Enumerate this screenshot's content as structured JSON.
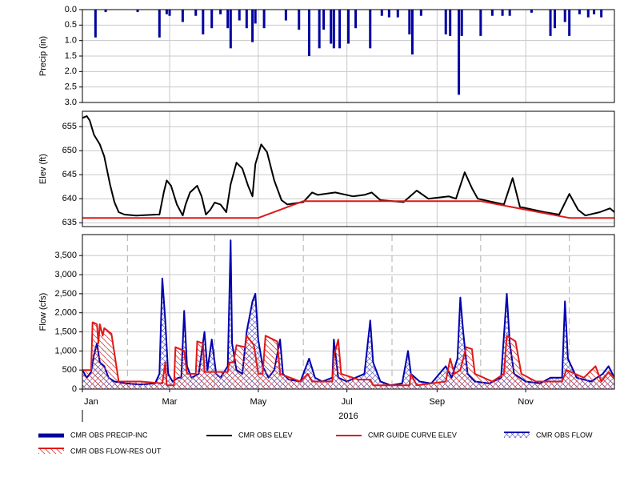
{
  "chart_data": [
    {
      "type": "bar",
      "ylabel": "Precip (in)",
      "xlim": [
        0,
        366
      ],
      "ylim": [
        3,
        0
      ],
      "yticks": [
        {
          "value": 0,
          "label": "0.0"
        },
        0.5,
        {
          "value": 1,
          "label": "1.0"
        },
        1.5,
        {
          "value": 2,
          "label": "2.0"
        },
        2.5,
        {
          "value": 3,
          "label": "3.0"
        }
      ],
      "grid": true,
      "series": [
        {
          "name": "CMR OBS PRECIP-INC",
          "color": "#0000a0",
          "x": [
            9,
            16,
            38,
            53,
            58,
            60,
            69,
            78,
            83,
            89,
            95,
            100,
            102,
            108,
            113,
            117,
            119,
            125,
            140,
            149,
            156,
            163,
            166,
            171,
            173,
            177,
            183,
            188,
            198,
            206,
            211,
            217,
            225,
            227,
            233,
            250,
            253,
            259,
            261,
            274,
            282,
            289,
            294,
            309,
            322,
            325,
            332,
            335,
            342,
            348,
            352,
            357
          ],
          "values": [
            0.9,
            0.08,
            0.08,
            0.9,
            0.15,
            0.2,
            0.4,
            0.2,
            0.8,
            0.6,
            0.15,
            0.6,
            1.25,
            0.35,
            0.6,
            1.05,
            0.45,
            0.6,
            0.35,
            0.65,
            1.5,
            1.25,
            0.65,
            1.1,
            1.25,
            1.25,
            1.1,
            0.6,
            1.25,
            0.2,
            0.25,
            0.25,
            0.8,
            1.45,
            0.2,
            0.8,
            0.85,
            2.75,
            0.85,
            0.85,
            0.2,
            0.2,
            0.2,
            0.1,
            0.85,
            0.6,
            0.4,
            0.85,
            0.15,
            0.25,
            0.15,
            0.25
          ]
        }
      ]
    },
    {
      "type": "line",
      "ylabel": "Elev (ft)",
      "xlim": [
        0,
        366
      ],
      "ylim": [
        634.2,
        658.2
      ],
      "yticks": [
        655,
        650,
        645,
        640,
        635
      ],
      "grid": true,
      "series": [
        {
          "name": "CMR OBS ELEV",
          "color": "#000000",
          "x": [
            0,
            3,
            5,
            8,
            12,
            15,
            19,
            22,
            25,
            29,
            37,
            51,
            53,
            56,
            58,
            61,
            65,
            69,
            71,
            74,
            79,
            82,
            85,
            88,
            91,
            95,
            99,
            102,
            106,
            110,
            114,
            117,
            119,
            123,
            127,
            132,
            137,
            141,
            152,
            158,
            162,
            174,
            186,
            194,
            199,
            205,
            221,
            230,
            238,
            252,
            257,
            263,
            268,
            272,
            290,
            296,
            301,
            318,
            328,
            335,
            341,
            346,
            356,
            363,
            366
          ],
          "values": [
            656.8,
            657.2,
            656.3,
            653.3,
            651.3,
            648.8,
            643,
            639.3,
            637.2,
            636.7,
            636.5,
            636.7,
            636.7,
            641.3,
            643.8,
            642.7,
            638.8,
            636.5,
            638.8,
            641.3,
            642.7,
            640.5,
            636.7,
            637.7,
            639.2,
            638.8,
            637.2,
            643,
            647.5,
            646.3,
            642.7,
            640.5,
            647.2,
            651.3,
            649.7,
            643.8,
            639.7,
            638.8,
            639.3,
            641.3,
            640.8,
            641.3,
            640.5,
            640.8,
            641.3,
            639.7,
            639.3,
            641.7,
            640,
            640.5,
            640,
            645.5,
            642.2,
            640,
            638.8,
            644.3,
            638.3,
            637.2,
            636.7,
            641,
            637.7,
            636.5,
            637.2,
            638,
            637.2
          ]
        },
        {
          "name": "CMR GUIDE CURVE ELEV",
          "color": "#e01818",
          "x": [
            0,
            121,
            152,
            274,
            335,
            366
          ],
          "values": [
            636,
            636,
            639.5,
            639.5,
            636,
            636
          ]
        }
      ]
    },
    {
      "type": "area",
      "ylabel": "Flow (cfs)",
      "xlabel": "2016",
      "xlim": [
        0,
        366
      ],
      "ylim": [
        0,
        4050
      ],
      "yticks": [
        0,
        500,
        {
          "value": 1000,
          "label": "1,000"
        },
        {
          "value": 1500,
          "label": "1,500"
        },
        {
          "value": 2000,
          "label": "2,000"
        },
        {
          "value": 2500,
          "label": "2,500"
        },
        {
          "value": 3000,
          "label": "3,000"
        },
        {
          "value": 3500,
          "label": "3,500"
        }
      ],
      "xticks": [
        {
          "value": 0,
          "label": "Jan"
        },
        {
          "value": 60,
          "label": "Mar"
        },
        {
          "value": 121,
          "label": "May"
        },
        {
          "value": 182,
          "label": "Jul"
        },
        {
          "value": 244,
          "label": "Sep"
        },
        {
          "value": 305,
          "label": "Nov"
        }
      ],
      "xminor": [
        31,
        91,
        152,
        213,
        274,
        335
      ],
      "grid": true,
      "series": [
        {
          "name": "CMR OBS FLOW",
          "color": "#0000b0",
          "x": [
            0,
            3,
            6,
            8,
            10,
            12,
            15,
            18,
            22,
            30,
            40,
            50,
            53,
            55,
            57,
            59,
            62,
            66,
            68,
            70,
            72,
            75,
            80,
            84,
            86,
            89,
            92,
            95,
            100,
            102,
            103,
            106,
            110,
            113,
            117,
            119,
            121,
            124,
            128,
            132,
            136,
            138,
            142,
            150,
            156,
            160,
            165,
            172,
            173,
            176,
            182,
            188,
            194,
            198,
            200,
            205,
            212,
            220,
            224,
            226,
            232,
            240,
            250,
            254,
            258,
            260,
            262,
            265,
            270,
            280,
            288,
            292,
            294,
            297,
            305,
            315,
            322,
            330,
            332,
            334,
            340,
            350,
            358,
            362,
            366
          ],
          "values": [
            500,
            300,
            450,
            900,
            1200,
            700,
            600,
            300,
            200,
            150,
            120,
            150,
            400,
            2900,
            1800,
            400,
            200,
            300,
            300,
            2050,
            600,
            300,
            400,
            1500,
            500,
            1300,
            400,
            300,
            600,
            3900,
            1200,
            500,
            400,
            1500,
            2300,
            2500,
            1300,
            600,
            300,
            500,
            1300,
            400,
            250,
            200,
            800,
            300,
            200,
            300,
            1300,
            300,
            200,
            300,
            400,
            1800,
            700,
            200,
            100,
            150,
            1000,
            400,
            200,
            150,
            600,
            300,
            800,
            2400,
            1500,
            400,
            200,
            150,
            300,
            2500,
            1200,
            400,
            200,
            150,
            300,
            300,
            2300,
            800,
            300,
            200,
            400,
            600,
            300
          ]
        },
        {
          "name": "CMR OBS FLOW-RES OUT",
          "color": "#e01818",
          "x": [
            0,
            6,
            7,
            10,
            11,
            12,
            14,
            15,
            20,
            25,
            40,
            55,
            57,
            58,
            63,
            64,
            70,
            72,
            78,
            79,
            83,
            84,
            100,
            101,
            104,
            106,
            112,
            113,
            118,
            121,
            124,
            126,
            134,
            136,
            150,
            155,
            158,
            172,
            173,
            176,
            178,
            190,
            198,
            200,
            225,
            226,
            230,
            250,
            253,
            256,
            260,
            264,
            268,
            270,
            282,
            290,
            292,
            298,
            302,
            312,
            330,
            333,
            345,
            353,
            357,
            362,
            366
          ],
          "values": [
            500,
            500,
            1750,
            1700,
            1200,
            1700,
            1400,
            1600,
            1450,
            200,
            200,
            150,
            700,
            100,
            100,
            1100,
            1000,
            400,
            400,
            1250,
            1200,
            450,
            450,
            700,
            700,
            1150,
            1100,
            1400,
            1150,
            400,
            400,
            1400,
            1250,
            400,
            200,
            400,
            200,
            200,
            850,
            1300,
            400,
            250,
            250,
            100,
            100,
            400,
            100,
            200,
            800,
            400,
            500,
            1100,
            1050,
            400,
            200,
            400,
            1400,
            1250,
            400,
            200,
            200,
            500,
            300,
            600,
            200,
            450,
            300
          ]
        }
      ]
    }
  ]
}
